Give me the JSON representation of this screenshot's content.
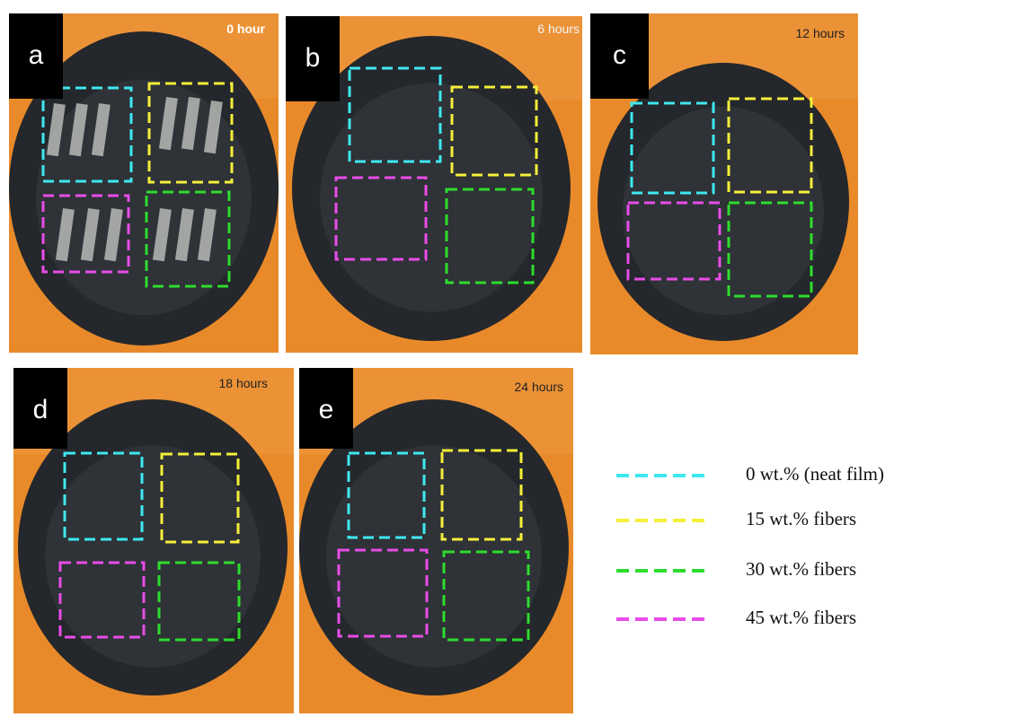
{
  "panels": [
    {
      "label": "a",
      "time": "0 hour"
    },
    {
      "label": "b",
      "time": "6 hours"
    },
    {
      "label": "c",
      "time": "12 hours"
    },
    {
      "label": "d",
      "time": "18 hours"
    },
    {
      "label": "e",
      "time": "24 hours"
    }
  ],
  "legend": [
    {
      "label": "0 wt.% (neat film)",
      "color": "#3ee8f0"
    },
    {
      "label": "15 wt.% fibers",
      "color": "#f5ef3a"
    },
    {
      "label": "30 wt.% fibers",
      "color": "#2edc2e"
    },
    {
      "label": "45 wt.% fibers",
      "color": "#e84ce8"
    }
  ]
}
